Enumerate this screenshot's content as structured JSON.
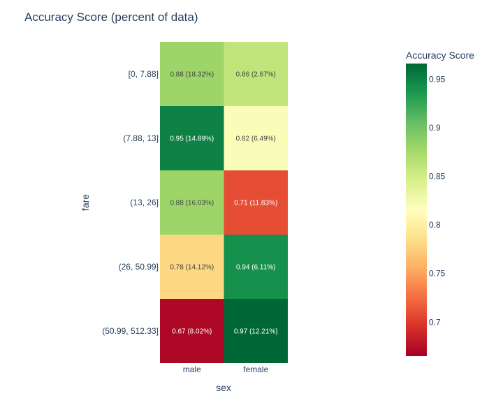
{
  "chart_data": {
    "type": "heatmap",
    "title": "Accuracy Score (percent of data)",
    "xlabel": "sex",
    "ylabel": "fare",
    "x_categories": [
      "male",
      "female"
    ],
    "y_categories": [
      "[0, 7.88]",
      "(7.88, 13]",
      "(13, 26]",
      "(26, 50.99]",
      "(50.99, 512.33]"
    ],
    "values": [
      [
        0.88,
        0.86
      ],
      [
        0.95,
        0.82
      ],
      [
        0.88,
        0.71
      ],
      [
        0.78,
        0.94
      ],
      [
        0.67,
        0.97
      ]
    ],
    "cell_labels": [
      [
        "0.88 (18.32%)",
        "0.86 (2.67%)"
      ],
      [
        "0.95 (14.89%)",
        "0.82 (6.49%)"
      ],
      [
        "0.88 (16.03%)",
        "0.71 (11.83%)"
      ],
      [
        "0.78 (14.12%)",
        "0.94 (6.11%)"
      ],
      [
        "0.67 (8.02%)",
        "0.97 (12.21%)"
      ]
    ],
    "colorscale": "RdYlGn",
    "colorbar": {
      "title": "Accuracy Score",
      "range": [
        0.665,
        0.966
      ],
      "ticks": [
        0.7,
        0.75,
        0.8,
        0.85,
        0.9,
        0.95
      ],
      "tick_labels": [
        "0.7",
        "0.75",
        "0.8",
        "0.85",
        "0.9",
        "0.95"
      ]
    }
  }
}
